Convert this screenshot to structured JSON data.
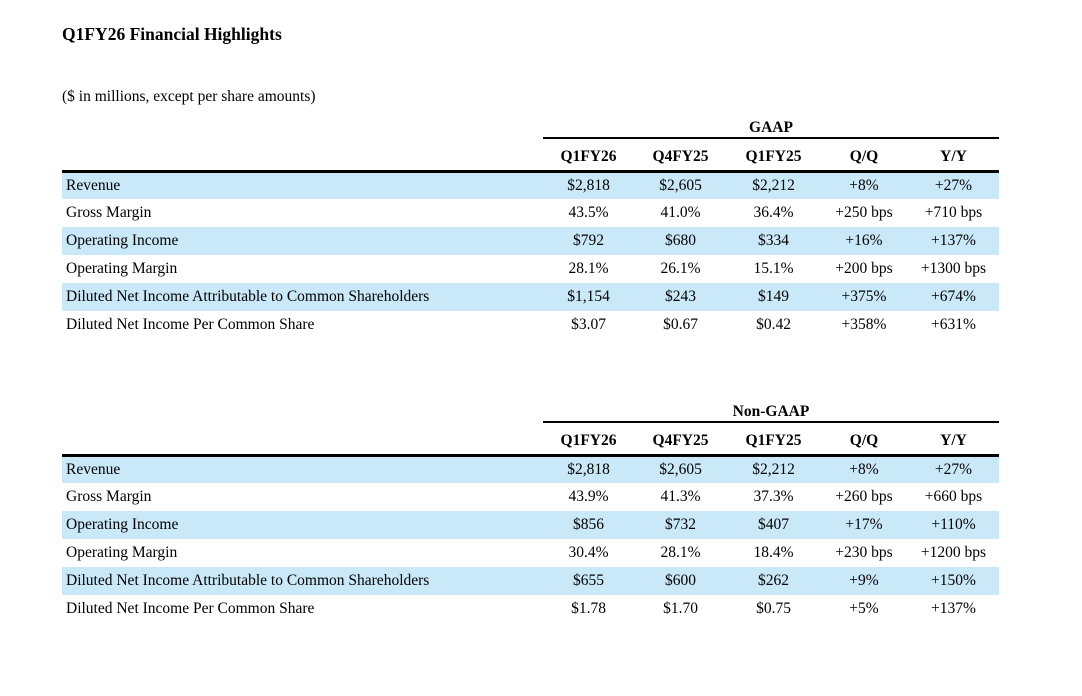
{
  "page": {
    "title": "Q1FY26 Financial Highlights",
    "subtitle": "($ in millions, except per share amounts)"
  },
  "columns": [
    "Q1FY26",
    "Q4FY25",
    "Q1FY25",
    "Q/Q",
    "Y/Y"
  ],
  "tables": [
    {
      "group_label": "GAAP",
      "rows": [
        {
          "label": "Revenue",
          "values": [
            "$2,818",
            "$2,605",
            "$2,212",
            "+8%",
            "+27%"
          ]
        },
        {
          "label": "Gross Margin",
          "values": [
            "43.5%",
            "41.0%",
            "36.4%",
            "+250 bps",
            "+710 bps"
          ]
        },
        {
          "label": "Operating Income",
          "values": [
            "$792",
            "$680",
            "$334",
            "+16%",
            "+137%"
          ]
        },
        {
          "label": "Operating Margin",
          "values": [
            "28.1%",
            "26.1%",
            "15.1%",
            "+200 bps",
            "+1300 bps"
          ]
        },
        {
          "label": "Diluted Net Income Attributable to Common Shareholders",
          "values": [
            "$1,154",
            "$243",
            "$149",
            "+375%",
            "+674%"
          ]
        },
        {
          "label": "Diluted Net Income Per Common Share",
          "values": [
            "$3.07",
            "$0.67",
            "$0.42",
            "+358%",
            "+631%"
          ]
        }
      ]
    },
    {
      "group_label": "Non-GAAP",
      "rows": [
        {
          "label": "Revenue",
          "values": [
            "$2,818",
            "$2,605",
            "$2,212",
            "+8%",
            "+27%"
          ]
        },
        {
          "label": "Gross Margin",
          "values": [
            "43.9%",
            "41.3%",
            "37.3%",
            "+260 bps",
            "+660 bps"
          ]
        },
        {
          "label": "Operating Income",
          "values": [
            "$856",
            "$732",
            "$407",
            "+17%",
            "+110%"
          ]
        },
        {
          "label": "Operating Margin",
          "values": [
            "30.4%",
            "28.1%",
            "18.4%",
            "+230 bps",
            "+1200 bps"
          ]
        },
        {
          "label": "Diluted Net Income Attributable to Common Shareholders",
          "values": [
            "$655",
            "$600",
            "$262",
            "+9%",
            "+150%"
          ]
        },
        {
          "label": "Diluted Net Income Per Common Share",
          "values": [
            "$1.78",
            "$1.70",
            "$0.75",
            "+5%",
            "+137%"
          ]
        }
      ]
    }
  ],
  "colors": {
    "row_highlight": "#c9e8f8",
    "rule_line": "#000000",
    "text": "#000000",
    "background": "#ffffff"
  }
}
